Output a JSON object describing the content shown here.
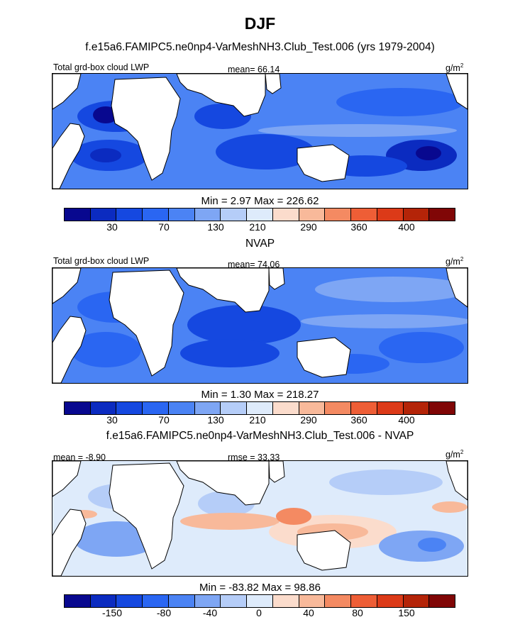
{
  "figure_title": "DJF",
  "colors": {
    "palette": [
      "#08088f",
      "#0b2bc0",
      "#1548e0",
      "#2a66f2",
      "#4b83f4",
      "#7ea6f4",
      "#b5cdf8",
      "#deebfb",
      "#fbdccc",
      "#f8b99a",
      "#f48a62",
      "#ee5e36",
      "#dc3a18",
      "#b42408",
      "#800606"
    ],
    "land": "#ffffff",
    "coast": "#000000"
  },
  "chart_data": [
    {
      "type": "heatmap",
      "title": "f.e15a6.FAMIPC5.ne0np4-VarMeshNH3.Club_Test.006 (yrs 1979-2004)",
      "left_label": "Total grd-box cloud LWP",
      "center_label": "mean=  66.14",
      "units_base": "g/m",
      "units_exp": "2",
      "min_max": "Min =   2.97 Max = 226.62",
      "colorbar_ticks": [
        "30",
        "70",
        "130",
        "210",
        "290",
        "360",
        "400"
      ],
      "x_range_deg_lon": [
        0,
        360
      ],
      "y_range_deg_lat": [
        -40,
        40
      ]
    },
    {
      "type": "heatmap",
      "title": "NVAP",
      "left_label": "Total grd-box cloud LWP",
      "center_label": "mean=  74.06",
      "units_base": "g/m",
      "units_exp": "2",
      "min_max": "Min =   1.30 Max = 218.27",
      "colorbar_ticks": [
        "30",
        "70",
        "130",
        "210",
        "290",
        "360",
        "400"
      ],
      "x_range_deg_lon": [
        0,
        360
      ],
      "y_range_deg_lat": [
        -40,
        40
      ]
    },
    {
      "type": "heatmap",
      "title": "f.e15a6.FAMIPC5.ne0np4-VarMeshNH3.Club_Test.006 - NVAP",
      "left_label": "mean =  -8.90",
      "center_label": "rmse =  33.33",
      "units_base": "g/m",
      "units_exp": "2",
      "min_max": "Min = -83.82 Max =  98.86",
      "colorbar_ticks": [
        "-150",
        "-80",
        "-40",
        "0",
        "40",
        "80",
        "150"
      ],
      "x_range_deg_lon": [
        0,
        360
      ],
      "y_range_deg_lat": [
        -40,
        40
      ]
    }
  ]
}
